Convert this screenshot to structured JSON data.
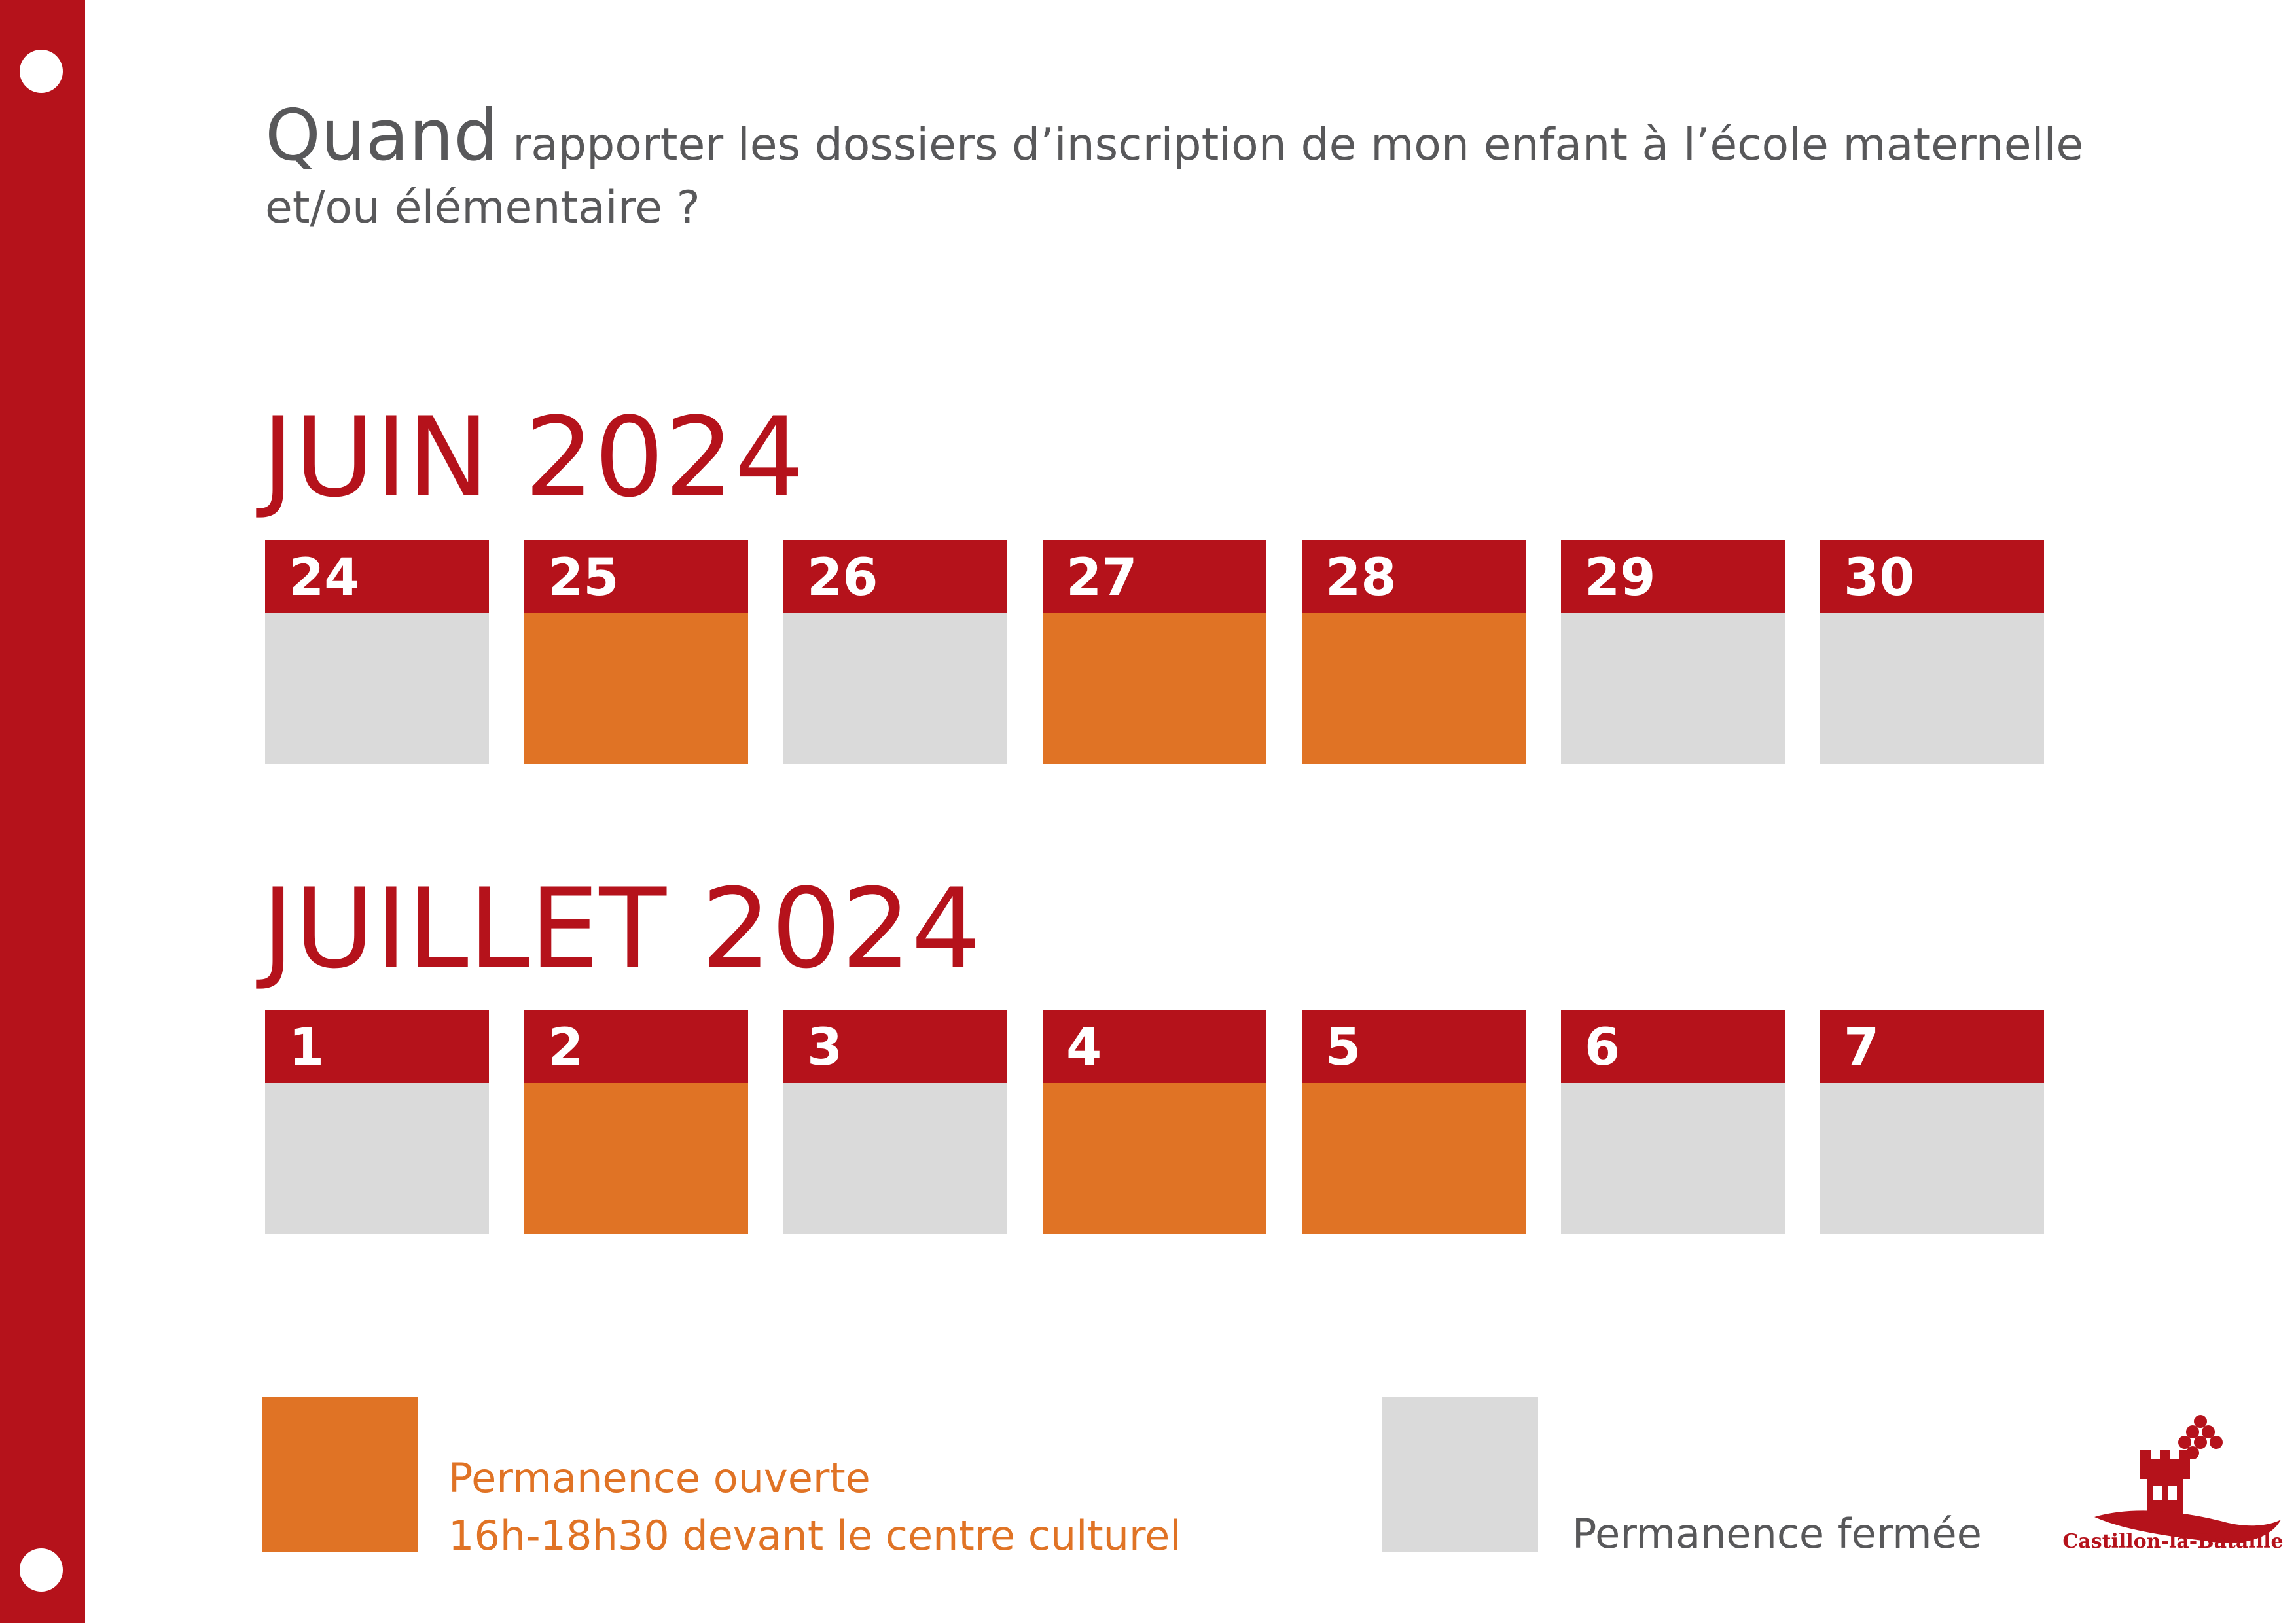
{
  "question": {
    "lead": "Quand",
    "rest": " rapporter les dossiers d’inscription de mon enfant à l’école maternelle et/ou élémentaire ?"
  },
  "months": [
    {
      "title": "JUIN 2024",
      "days": [
        {
          "num": "24",
          "status": "closed"
        },
        {
          "num": "25",
          "status": "open"
        },
        {
          "num": "26",
          "status": "closed"
        },
        {
          "num": "27",
          "status": "open"
        },
        {
          "num": "28",
          "status": "open"
        },
        {
          "num": "29",
          "status": "closed"
        },
        {
          "num": "30",
          "status": "closed"
        }
      ]
    },
    {
      "title": "JUILLET 2024",
      "days": [
        {
          "num": "1",
          "status": "closed"
        },
        {
          "num": "2",
          "status": "open"
        },
        {
          "num": "3",
          "status": "closed"
        },
        {
          "num": "4",
          "status": "open"
        },
        {
          "num": "5",
          "status": "open"
        },
        {
          "num": "6",
          "status": "closed"
        },
        {
          "num": "7",
          "status": "closed"
        }
      ]
    }
  ],
  "legend": {
    "open_line1": "Permanence ouverte",
    "open_line2": "16h-18h30 devant le centre culturel",
    "closed": "Permanence fermée"
  },
  "logo": {
    "text": "Castillon-la-Bataille"
  },
  "colors": {
    "brand_red": "#b5121b",
    "open_orange": "#e07325",
    "closed_grey": "#dadada",
    "text_grey": "#58585a"
  }
}
